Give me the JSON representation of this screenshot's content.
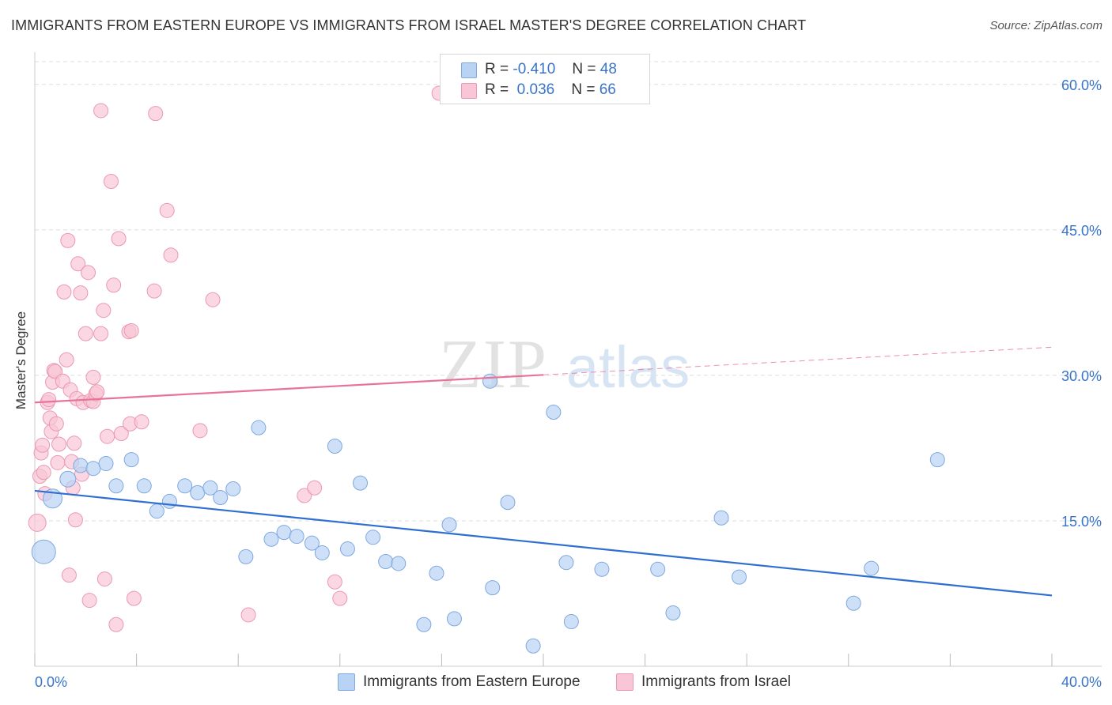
{
  "header": {
    "title": "IMMIGRANTS FROM EASTERN EUROPE VS IMMIGRANTS FROM ISRAEL MASTER'S DEGREE CORRELATION CHART",
    "source": "Source: ZipAtlas.com"
  },
  "legend": {
    "series1": {
      "r_label": "R =",
      "r_value": "-0.410",
      "n_label": "N =",
      "n_value": "48"
    },
    "series2": {
      "r_label": "R =",
      "r_value": "0.036",
      "n_label": "N =",
      "n_value": "66"
    }
  },
  "watermark": {
    "part1": "ZIP",
    "part2": "atlas"
  },
  "chart_data": {
    "type": "scatter",
    "title": "IMMIGRANTS FROM EASTERN EUROPE VS IMMIGRANTS FROM ISRAEL MASTER'S DEGREE CORRELATION CHART",
    "xlabel": "",
    "ylabel": "Master's Degree",
    "xlim": [
      0,
      40
    ],
    "ylim": [
      0,
      63
    ],
    "x_tick_labels": [
      "0.0%",
      "40.0%"
    ],
    "y_ticks": [
      15,
      30,
      45,
      60
    ],
    "y_tick_labels": [
      "15.0%",
      "30.0%",
      "45.0%",
      "60.0%"
    ],
    "legend_position": "bottom",
    "colors": {
      "blue_fill": "#b9d3f5",
      "blue_stroke": "#7fa8de",
      "blue_line": "#2f6fd1",
      "pink_fill": "#f8c6d6",
      "pink_stroke": "#eb98b3",
      "pink_line": "#e8739a",
      "axis_label": "#3a74c9",
      "grid": "#dddddd"
    },
    "series": [
      {
        "name": "Immigrants from Eastern Europe",
        "color": "blue",
        "trend": {
          "x0": 0,
          "y0": 18.1,
          "x1": 40,
          "y1": 7.3,
          "dashed_from": null
        },
        "points": [
          [
            0.35,
            11.8,
            30
          ],
          [
            0.7,
            17.3,
            24
          ],
          [
            1.3,
            19.3,
            20
          ],
          [
            1.8,
            20.7,
            18
          ],
          [
            2.3,
            20.4,
            18
          ],
          [
            2.8,
            20.9,
            18
          ],
          [
            3.2,
            18.6,
            18
          ],
          [
            3.8,
            21.3,
            18
          ],
          [
            4.3,
            18.6,
            18
          ],
          [
            4.8,
            16.0,
            18
          ],
          [
            5.3,
            17.0,
            18
          ],
          [
            5.9,
            18.6,
            18
          ],
          [
            6.4,
            17.9,
            18
          ],
          [
            6.9,
            18.4,
            18
          ],
          [
            7.3,
            17.4,
            18
          ],
          [
            7.8,
            18.3,
            18
          ],
          [
            8.3,
            11.3,
            18
          ],
          [
            8.8,
            24.6,
            18
          ],
          [
            9.3,
            13.1,
            18
          ],
          [
            9.8,
            13.8,
            18
          ],
          [
            10.3,
            13.4,
            18
          ],
          [
            10.9,
            12.7,
            18
          ],
          [
            11.3,
            11.7,
            18
          ],
          [
            11.8,
            22.7,
            18
          ],
          [
            12.3,
            12.1,
            18
          ],
          [
            12.8,
            18.9,
            18
          ],
          [
            13.3,
            13.3,
            18
          ],
          [
            13.8,
            10.8,
            18
          ],
          [
            14.3,
            10.6,
            18
          ],
          [
            15.3,
            4.3,
            18
          ],
          [
            15.8,
            9.6,
            18
          ],
          [
            16.3,
            14.6,
            18
          ],
          [
            16.5,
            4.9,
            18
          ],
          [
            17.9,
            29.4,
            18
          ],
          [
            18.0,
            8.1,
            18
          ],
          [
            18.6,
            16.9,
            18
          ],
          [
            19.6,
            2.1,
            18
          ],
          [
            20.4,
            26.2,
            18
          ],
          [
            20.9,
            10.7,
            18
          ],
          [
            21.1,
            4.6,
            18
          ],
          [
            22.3,
            10.0,
            18
          ],
          [
            24.5,
            10.0,
            18
          ],
          [
            25.1,
            5.5,
            18
          ],
          [
            27.0,
            15.3,
            18
          ],
          [
            27.7,
            9.2,
            18
          ],
          [
            32.2,
            6.5,
            18
          ],
          [
            32.9,
            10.1,
            18
          ],
          [
            35.5,
            21.3,
            18
          ]
        ]
      },
      {
        "name": "Immigrants from Israel",
        "color": "pink",
        "trend": {
          "x0": 0,
          "y0": 27.2,
          "x1": 40,
          "y1": 32.9,
          "dashed_from": 20.0
        },
        "points": [
          [
            0.1,
            14.8,
            22
          ],
          [
            0.2,
            19.6,
            18
          ],
          [
            0.25,
            22.0,
            18
          ],
          [
            0.3,
            22.8,
            18
          ],
          [
            0.35,
            20.0,
            18
          ],
          [
            0.4,
            17.8,
            18
          ],
          [
            0.5,
            27.2,
            18
          ],
          [
            0.55,
            27.5,
            18
          ],
          [
            0.6,
            25.6,
            18
          ],
          [
            0.65,
            24.2,
            18
          ],
          [
            0.7,
            29.3,
            18
          ],
          [
            0.75,
            30.5,
            18
          ],
          [
            0.8,
            30.4,
            18
          ],
          [
            0.85,
            25.0,
            18
          ],
          [
            0.9,
            21.0,
            18
          ],
          [
            0.95,
            22.9,
            18
          ],
          [
            1.1,
            29.4,
            18
          ],
          [
            1.15,
            38.6,
            18
          ],
          [
            1.25,
            31.6,
            18
          ],
          [
            1.3,
            43.9,
            18
          ],
          [
            1.35,
            9.4,
            18
          ],
          [
            1.4,
            28.5,
            18
          ],
          [
            1.45,
            21.1,
            18
          ],
          [
            1.5,
            18.4,
            18
          ],
          [
            1.55,
            23.0,
            18
          ],
          [
            1.6,
            15.1,
            18
          ],
          [
            1.65,
            27.6,
            18
          ],
          [
            1.7,
            41.5,
            18
          ],
          [
            1.8,
            38.5,
            18
          ],
          [
            1.85,
            19.8,
            18
          ],
          [
            1.9,
            27.2,
            18
          ],
          [
            2.0,
            34.3,
            18
          ],
          [
            2.1,
            40.6,
            18
          ],
          [
            2.15,
            6.8,
            18
          ],
          [
            2.2,
            27.4,
            18
          ],
          [
            2.3,
            27.3,
            18
          ],
          [
            2.3,
            29.8,
            18
          ],
          [
            2.4,
            28.1,
            18
          ],
          [
            2.45,
            28.3,
            18
          ],
          [
            2.6,
            34.3,
            18
          ],
          [
            2.6,
            57.3,
            18
          ],
          [
            2.7,
            36.7,
            18
          ],
          [
            2.75,
            9.0,
            18
          ],
          [
            2.85,
            23.7,
            18
          ],
          [
            3.0,
            50.0,
            18
          ],
          [
            3.1,
            39.3,
            18
          ],
          [
            3.2,
            4.3,
            18
          ],
          [
            3.3,
            44.1,
            18
          ],
          [
            3.4,
            24.0,
            18
          ],
          [
            3.7,
            34.5,
            18
          ],
          [
            3.75,
            25.0,
            18
          ],
          [
            3.8,
            34.6,
            18
          ],
          [
            3.9,
            7.0,
            18
          ],
          [
            4.2,
            25.2,
            18
          ],
          [
            4.7,
            38.7,
            18
          ],
          [
            4.75,
            57.0,
            18
          ],
          [
            5.2,
            47.0,
            18
          ],
          [
            5.35,
            42.4,
            18
          ],
          [
            6.5,
            24.3,
            18
          ],
          [
            7.0,
            37.8,
            18
          ],
          [
            8.4,
            5.3,
            18
          ],
          [
            10.6,
            17.6,
            18
          ],
          [
            11.0,
            18.4,
            18
          ],
          [
            11.8,
            8.7,
            18
          ],
          [
            12.0,
            7.0,
            18
          ],
          [
            15.9,
            59.1,
            18
          ]
        ]
      }
    ]
  },
  "bottom_legend": {
    "item1": "Immigrants from Eastern Europe",
    "item2": "Immigrants from Israel"
  }
}
